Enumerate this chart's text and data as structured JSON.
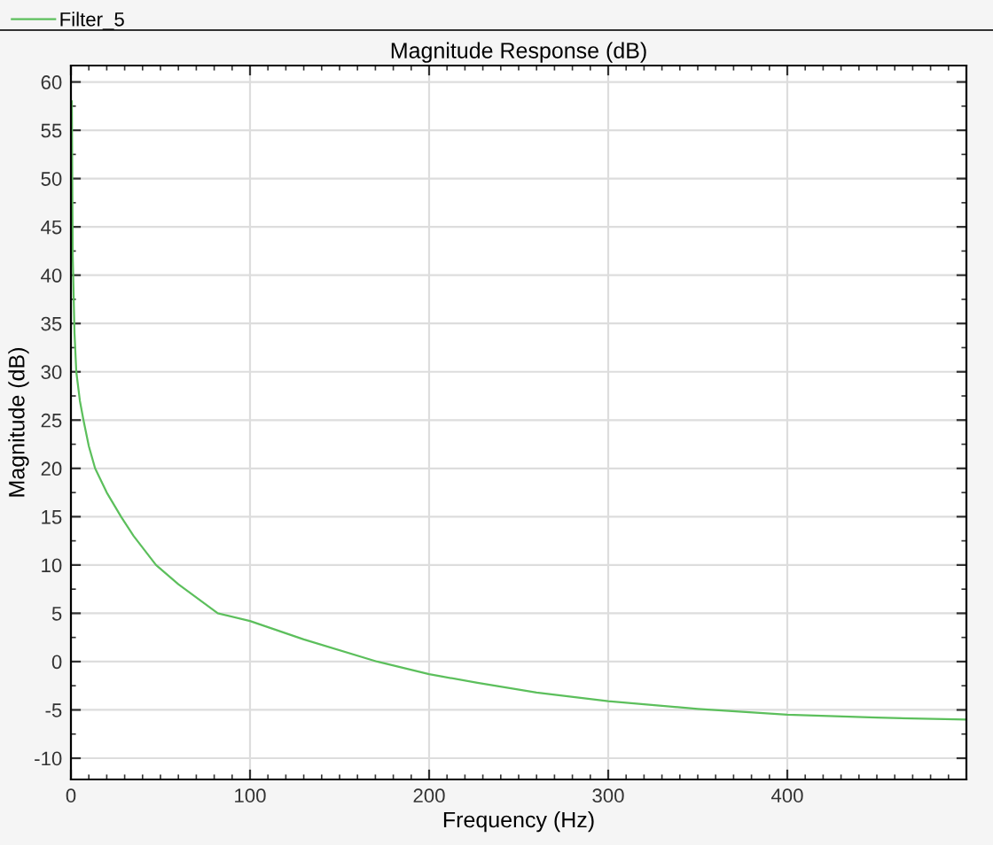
{
  "chart_data": {
    "type": "line",
    "title": "Magnitude Response (dB)",
    "xlabel": "Frequency (Hz)",
    "ylabel": "Magnitude (dB)",
    "xlim": [
      0,
      500
    ],
    "xticks": [
      0,
      100,
      200,
      300,
      400
    ],
    "ylim": [
      -12.2,
      61.7
    ],
    "yticks": [
      -10,
      -5,
      0,
      5,
      10,
      15,
      20,
      25,
      30,
      35,
      40,
      45,
      50,
      55,
      60
    ],
    "grid": true,
    "legend": "top left",
    "series": [
      {
        "name": "Filter_5",
        "color": "#5cbf5c",
        "x": [
          0.5,
          1,
          2,
          3,
          5,
          7,
          10,
          13.5,
          20,
          28,
          35,
          47.5,
          60,
          82,
          100,
          130,
          171,
          200,
          227,
          260,
          300,
          350,
          400,
          450,
          500
        ],
        "values": [
          58,
          42,
          34,
          30,
          27,
          25,
          22.3,
          20,
          17.5,
          15,
          13,
          10,
          8,
          5,
          4.2,
          2.3,
          0,
          -1.3,
          -2.2,
          -3.2,
          -4.1,
          -4.9,
          -5.5,
          -5.8,
          -6.0
        ]
      }
    ]
  }
}
